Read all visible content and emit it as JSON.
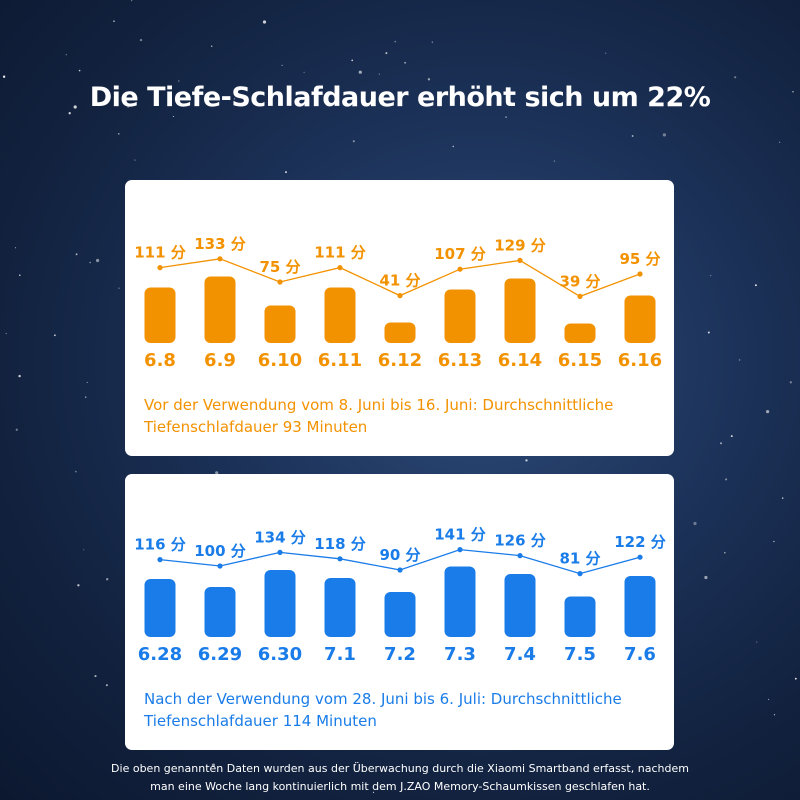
{
  "headline": "Die Tiefe-Schlafdauer erhöht sich um 22%",
  "colors": {
    "before": "#f39200",
    "after": "#1a7ce8",
    "background": "#16284a"
  },
  "chart_data": [
    {
      "type": "bar",
      "categories": [
        "6.8",
        "6.9",
        "6.10",
        "6.11",
        "6.12",
        "6.13",
        "6.14",
        "6.15",
        "6.16"
      ],
      "values": [
        111,
        133,
        75,
        111,
        41,
        107,
        129,
        39,
        95
      ],
      "value_labels": [
        "111 分",
        "133 分",
        "75 分",
        "111 分",
        "41 分",
        "107 分",
        "129 分",
        "39 分",
        "95 分"
      ],
      "caption": "Vor der Verwendung vom 8. Juni bis 16. Juni: Durchschnittliche Tiefenschlafdauer 93 Minuten",
      "color": "#f39200",
      "overlay": "line"
    },
    {
      "type": "bar",
      "categories": [
        "6.28",
        "6.29",
        "6.30",
        "7.1",
        "7.2",
        "7.3",
        "7.4",
        "7.5",
        "7.6"
      ],
      "values": [
        116,
        100,
        134,
        118,
        90,
        141,
        126,
        81,
        122
      ],
      "value_labels": [
        "116 分",
        "100 分",
        "134 分",
        "118 分",
        "90 分",
        "141 分",
        "126 分",
        "81 分",
        "122 分"
      ],
      "caption": "Nach der Verwendung vom 28. Juni bis 6. Juli: Durchschnittliche Tiefenschlafdauer 114 Minuten",
      "color": "#1a7ce8",
      "overlay": "line"
    }
  ],
  "footnote_lines": [
    "Die oben genannten Daten wurden aus der Überwachung durch die Xiaomi Smartband erfasst, nachdem",
    "man eine Woche lang kontinuierlich mit dem J.ZAO Memory-Schaumkissen geschlafen hat."
  ]
}
